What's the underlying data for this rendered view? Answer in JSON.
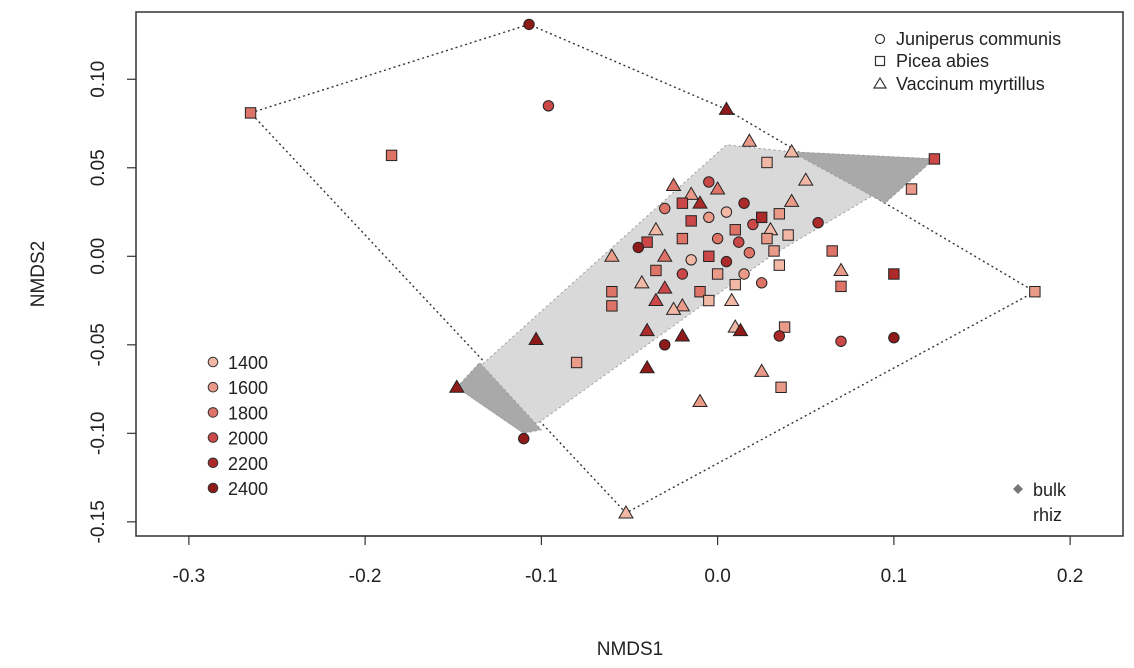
{
  "chart_data": {
    "type": "scatter",
    "xlabel": "NMDS1",
    "ylabel": "NMDS2",
    "xlim": [
      -0.33,
      0.23
    ],
    "ylim": [
      -0.158,
      0.138
    ],
    "x_ticks": [
      -0.3,
      -0.2,
      -0.1,
      0.0,
      0.1,
      0.2
    ],
    "x_tick_labels": [
      "-0.3",
      "-0.2",
      "-0.1",
      "0.0",
      "0.1",
      "0.2"
    ],
    "y_ticks": [
      -0.15,
      -0.1,
      -0.05,
      0.0,
      0.05,
      0.1
    ],
    "y_tick_labels": [
      "-0.15",
      "-0.10",
      "-0.05",
      "0.00",
      "0.05",
      "0.10"
    ],
    "grid": false,
    "species_legend": {
      "placement": "top-right",
      "items": [
        {
          "label": "Juniperus communis",
          "shape": "circle"
        },
        {
          "label": "Picea abies",
          "shape": "square"
        },
        {
          "label": "Vaccinum myrtillus",
          "shape": "triangle"
        }
      ]
    },
    "elevation_legend": {
      "placement": "bottom-left",
      "items": [
        {
          "label": "1400",
          "color": "#f2b8a6"
        },
        {
          "label": "1600",
          "color": "#ea9a88"
        },
        {
          "label": "1800",
          "color": "#de7468"
        },
        {
          "label": "2000",
          "color": "#cc4848"
        },
        {
          "label": "2200",
          "color": "#ad2a2a"
        },
        {
          "label": "2400",
          "color": "#8e1a1a"
        }
      ]
    },
    "compartment_legend": {
      "placement": "bottom-right",
      "items": [
        {
          "label": "bulk",
          "color": "#777777"
        },
        {
          "label": "rhiz",
          "color": "#cccccc"
        }
      ]
    },
    "hulls": [
      {
        "group": "bulk",
        "style": "dotted-outline",
        "points": [
          [
            -0.265,
            0.081
          ],
          [
            -0.107,
            0.131
          ],
          [
            0.005,
            0.083
          ],
          [
            0.18,
            -0.02
          ],
          [
            -0.052,
            -0.145
          ]
        ]
      },
      {
        "group": "rhiz",
        "style": "light-fill",
        "color": "#d9d9d9",
        "points": [
          [
            -0.148,
            -0.074
          ],
          [
            0.005,
            0.063
          ],
          [
            0.042,
            0.059
          ],
          [
            0.123,
            0.055
          ],
          [
            0.03,
            0.0
          ],
          [
            -0.11,
            -0.1
          ]
        ]
      },
      {
        "group": "overlap",
        "style": "dark-fill",
        "color": "#a9a9a9",
        "points": [
          [
            0.042,
            0.059
          ],
          [
            0.123,
            0.055
          ],
          [
            0.095,
            0.03
          ]
        ]
      },
      {
        "group": "overlap",
        "style": "dark-fill",
        "color": "#a9a9a9",
        "points": [
          [
            -0.148,
            -0.074
          ],
          [
            -0.135,
            -0.06
          ],
          [
            -0.1,
            -0.098
          ],
          [
            -0.11,
            -0.1
          ]
        ]
      }
    ],
    "points": [
      {
        "x": -0.107,
        "y": 0.131,
        "shape": "circle",
        "elev": "2400"
      },
      {
        "x": -0.265,
        "y": 0.081,
        "shape": "square",
        "elev": "1800"
      },
      {
        "x": -0.096,
        "y": 0.085,
        "shape": "circle",
        "elev": "2000"
      },
      {
        "x": 0.005,
        "y": 0.083,
        "shape": "triangle",
        "elev": "2400"
      },
      {
        "x": -0.185,
        "y": 0.057,
        "shape": "square",
        "elev": "1800"
      },
      {
        "x": 0.123,
        "y": 0.055,
        "shape": "square",
        "elev": "2000"
      },
      {
        "x": 0.018,
        "y": 0.065,
        "shape": "triangle",
        "elev": "1600"
      },
      {
        "x": 0.042,
        "y": 0.059,
        "shape": "triangle",
        "elev": "1400"
      },
      {
        "x": 0.028,
        "y": 0.053,
        "shape": "square",
        "elev": "1400"
      },
      {
        "x": 0.11,
        "y": 0.038,
        "shape": "square",
        "elev": "1600"
      },
      {
        "x": 0.05,
        "y": 0.043,
        "shape": "triangle",
        "elev": "1400"
      },
      {
        "x": -0.025,
        "y": 0.04,
        "shape": "triangle",
        "elev": "1800"
      },
      {
        "x": -0.005,
        "y": 0.042,
        "shape": "circle",
        "elev": "2000"
      },
      {
        "x": 0.042,
        "y": 0.031,
        "shape": "triangle",
        "elev": "1600"
      },
      {
        "x": -0.015,
        "y": 0.035,
        "shape": "triangle",
        "elev": "1600"
      },
      {
        "x": 0.0,
        "y": 0.038,
        "shape": "triangle",
        "elev": "1800"
      },
      {
        "x": -0.02,
        "y": 0.03,
        "shape": "square",
        "elev": "2000"
      },
      {
        "x": -0.01,
        "y": 0.03,
        "shape": "triangle",
        "elev": "2200"
      },
      {
        "x": 0.005,
        "y": 0.025,
        "shape": "circle",
        "elev": "1400"
      },
      {
        "x": 0.015,
        "y": 0.03,
        "shape": "circle",
        "elev": "2200"
      },
      {
        "x": 0.035,
        "y": 0.024,
        "shape": "square",
        "elev": "1600"
      },
      {
        "x": 0.03,
        "y": 0.015,
        "shape": "triangle",
        "elev": "1400"
      },
      {
        "x": -0.03,
        "y": 0.027,
        "shape": "circle",
        "elev": "1800"
      },
      {
        "x": -0.035,
        "y": 0.015,
        "shape": "triangle",
        "elev": "1400"
      },
      {
        "x": -0.015,
        "y": 0.02,
        "shape": "square",
        "elev": "2000"
      },
      {
        "x": -0.005,
        "y": 0.022,
        "shape": "circle",
        "elev": "1600"
      },
      {
        "x": 0.01,
        "y": 0.015,
        "shape": "square",
        "elev": "1800"
      },
      {
        "x": 0.02,
        "y": 0.018,
        "shape": "circle",
        "elev": "2000"
      },
      {
        "x": 0.025,
        "y": 0.022,
        "shape": "square",
        "elev": "2200"
      },
      {
        "x": 0.057,
        "y": 0.019,
        "shape": "circle",
        "elev": "2200"
      },
      {
        "x": -0.04,
        "y": 0.008,
        "shape": "square",
        "elev": "2000"
      },
      {
        "x": -0.02,
        "y": 0.01,
        "shape": "square",
        "elev": "1800"
      },
      {
        "x": 0.0,
        "y": 0.01,
        "shape": "circle",
        "elev": "1800"
      },
      {
        "x": 0.012,
        "y": 0.008,
        "shape": "circle",
        "elev": "2000"
      },
      {
        "x": 0.028,
        "y": 0.01,
        "shape": "square",
        "elev": "1600"
      },
      {
        "x": 0.04,
        "y": 0.012,
        "shape": "square",
        "elev": "1400"
      },
      {
        "x": -0.045,
        "y": 0.005,
        "shape": "circle",
        "elev": "2400"
      },
      {
        "x": -0.03,
        "y": 0.0,
        "shape": "triangle",
        "elev": "1800"
      },
      {
        "x": -0.015,
        "y": -0.002,
        "shape": "circle",
        "elev": "1400"
      },
      {
        "x": -0.005,
        "y": 0.0,
        "shape": "square",
        "elev": "2000"
      },
      {
        "x": 0.005,
        "y": -0.003,
        "shape": "circle",
        "elev": "2200"
      },
      {
        "x": 0.018,
        "y": 0.002,
        "shape": "circle",
        "elev": "1800"
      },
      {
        "x": 0.032,
        "y": 0.003,
        "shape": "square",
        "elev": "1600"
      },
      {
        "x": 0.065,
        "y": 0.003,
        "shape": "square",
        "elev": "1800"
      },
      {
        "x": -0.06,
        "y": 0.0,
        "shape": "triangle",
        "elev": "1600"
      },
      {
        "x": -0.035,
        "y": -0.008,
        "shape": "square",
        "elev": "1800"
      },
      {
        "x": -0.02,
        "y": -0.01,
        "shape": "circle",
        "elev": "2000"
      },
      {
        "x": 0.0,
        "y": -0.01,
        "shape": "square",
        "elev": "1600"
      },
      {
        "x": 0.015,
        "y": -0.01,
        "shape": "circle",
        "elev": "1600"
      },
      {
        "x": 0.035,
        "y": -0.005,
        "shape": "square",
        "elev": "1400"
      },
      {
        "x": 0.07,
        "y": -0.008,
        "shape": "triangle",
        "elev": "1600"
      },
      {
        "x": 0.1,
        "y": -0.01,
        "shape": "square",
        "elev": "2200"
      },
      {
        "x": -0.043,
        "y": -0.015,
        "shape": "triangle",
        "elev": "1400"
      },
      {
        "x": -0.03,
        "y": -0.018,
        "shape": "triangle",
        "elev": "2000"
      },
      {
        "x": -0.01,
        "y": -0.02,
        "shape": "square",
        "elev": "1800"
      },
      {
        "x": 0.01,
        "y": -0.016,
        "shape": "square",
        "elev": "1400"
      },
      {
        "x": 0.025,
        "y": -0.015,
        "shape": "circle",
        "elev": "1800"
      },
      {
        "x": 0.07,
        "y": -0.017,
        "shape": "square",
        "elev": "1800"
      },
      {
        "x": 0.18,
        "y": -0.02,
        "shape": "square",
        "elev": "1600"
      },
      {
        "x": -0.06,
        "y": -0.02,
        "shape": "square",
        "elev": "1800"
      },
      {
        "x": -0.06,
        "y": -0.028,
        "shape": "square",
        "elev": "1800"
      },
      {
        "x": -0.035,
        "y": -0.025,
        "shape": "triangle",
        "elev": "2000"
      },
      {
        "x": -0.02,
        "y": -0.028,
        "shape": "triangle",
        "elev": "1600"
      },
      {
        "x": -0.005,
        "y": -0.025,
        "shape": "square",
        "elev": "1400"
      },
      {
        "x": 0.008,
        "y": -0.025,
        "shape": "triangle",
        "elev": "1400"
      },
      {
        "x": 0.01,
        "y": -0.04,
        "shape": "triangle",
        "elev": "1400"
      },
      {
        "x": -0.025,
        "y": -0.03,
        "shape": "triangle",
        "elev": "1400"
      },
      {
        "x": 0.038,
        "y": -0.04,
        "shape": "square",
        "elev": "1600"
      },
      {
        "x": -0.04,
        "y": -0.042,
        "shape": "triangle",
        "elev": "2200"
      },
      {
        "x": -0.02,
        "y": -0.045,
        "shape": "triangle",
        "elev": "2400"
      },
      {
        "x": 0.013,
        "y": -0.042,
        "shape": "triangle",
        "elev": "2400"
      },
      {
        "x": 0.035,
        "y": -0.045,
        "shape": "circle",
        "elev": "2200"
      },
      {
        "x": -0.03,
        "y": -0.05,
        "shape": "circle",
        "elev": "2400"
      },
      {
        "x": 0.07,
        "y": -0.048,
        "shape": "circle",
        "elev": "2000"
      },
      {
        "x": 0.1,
        "y": -0.046,
        "shape": "circle",
        "elev": "2400"
      },
      {
        "x": -0.103,
        "y": -0.047,
        "shape": "triangle",
        "elev": "2400"
      },
      {
        "x": -0.08,
        "y": -0.06,
        "shape": "square",
        "elev": "1600"
      },
      {
        "x": -0.04,
        "y": -0.063,
        "shape": "triangle",
        "elev": "2400"
      },
      {
        "x": 0.025,
        "y": -0.065,
        "shape": "triangle",
        "elev": "1600"
      },
      {
        "x": 0.036,
        "y": -0.074,
        "shape": "square",
        "elev": "1600"
      },
      {
        "x": -0.148,
        "y": -0.074,
        "shape": "triangle",
        "elev": "2400"
      },
      {
        "x": -0.01,
        "y": -0.082,
        "shape": "triangle",
        "elev": "1600"
      },
      {
        "x": -0.11,
        "y": -0.103,
        "shape": "circle",
        "elev": "2400"
      },
      {
        "x": -0.052,
        "y": -0.145,
        "shape": "triangle",
        "elev": "1400"
      }
    ]
  }
}
